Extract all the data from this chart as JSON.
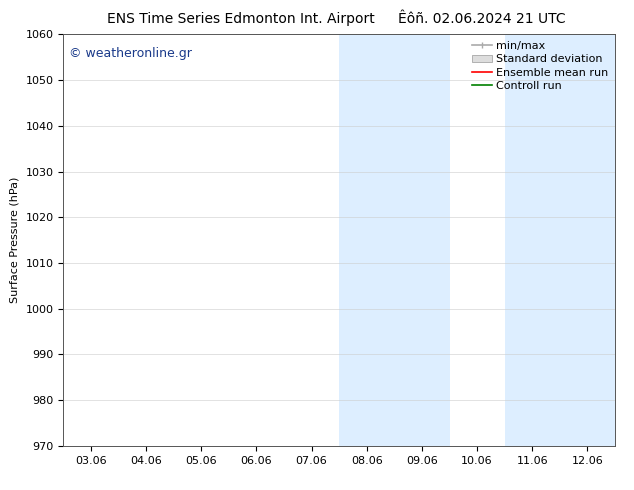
{
  "title_left": "ENS Time Series Edmonton Int. Airport",
  "title_right": "Êôñ. 02.06.2024 21 UTC",
  "ylabel": "Surface Pressure (hPa)",
  "ylim": [
    970,
    1060
  ],
  "yticks": [
    970,
    980,
    990,
    1000,
    1010,
    1020,
    1030,
    1040,
    1050,
    1060
  ],
  "xtick_labels": [
    "03.06",
    "04.06",
    "05.06",
    "06.06",
    "07.06",
    "08.06",
    "09.06",
    "10.06",
    "11.06",
    "12.06"
  ],
  "shade_color": "#ddeeff",
  "watermark": "© weatheronline.gr",
  "watermark_color": "#1a3a8a",
  "background_color": "#ffffff",
  "plot_bg_color": "#ffffff",
  "title_fontsize": 10,
  "axis_label_fontsize": 8,
  "tick_fontsize": 8,
  "watermark_fontsize": 9,
  "legend_fontsize": 8
}
